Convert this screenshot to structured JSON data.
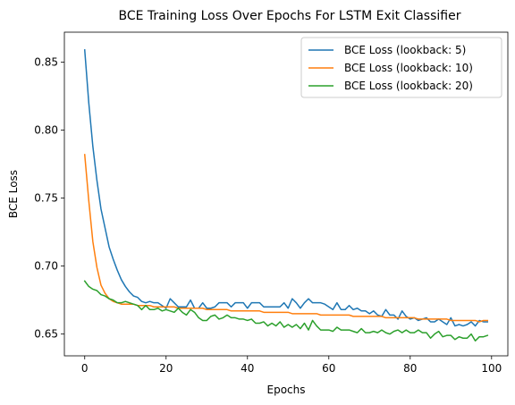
{
  "chart_data": {
    "type": "line",
    "title": "BCE Training Loss Over Epochs For LSTM Exit Classifier",
    "xlabel": "Epochs",
    "ylabel": "BCE Loss",
    "xlim": [
      -5,
      104
    ],
    "ylim": [
      0.634,
      0.872
    ],
    "xticks": [
      0,
      20,
      40,
      60,
      80,
      100
    ],
    "yticks": [
      0.65,
      0.7,
      0.75,
      0.8,
      0.85
    ],
    "xtick_labels": [
      "0",
      "20",
      "40",
      "60",
      "80",
      "100"
    ],
    "ytick_labels": [
      "0.65",
      "0.70",
      "0.75",
      "0.80",
      "0.85"
    ],
    "grid": false,
    "legend_position": "top-right",
    "series": [
      {
        "name": "BCE Loss (lookback: 5)",
        "color": "#1f77b4",
        "x": [
          0,
          1,
          2,
          3,
          4,
          5,
          6,
          7,
          8,
          9,
          10,
          11,
          12,
          13,
          14,
          15,
          16,
          17,
          18,
          19,
          20,
          21,
          22,
          23,
          24,
          25,
          26,
          27,
          28,
          29,
          30,
          31,
          32,
          33,
          34,
          35,
          36,
          37,
          38,
          39,
          40,
          41,
          42,
          43,
          44,
          45,
          46,
          47,
          48,
          49,
          50,
          51,
          52,
          53,
          54,
          55,
          56,
          57,
          58,
          59,
          60,
          61,
          62,
          63,
          64,
          65,
          66,
          67,
          68,
          69,
          70,
          71,
          72,
          73,
          74,
          75,
          76,
          77,
          78,
          79,
          80,
          81,
          82,
          83,
          84,
          85,
          86,
          87,
          88,
          89,
          90,
          91,
          92,
          93,
          94,
          95,
          96,
          97,
          98,
          99
        ],
        "y": [
          0.859,
          0.82,
          0.788,
          0.763,
          0.742,
          0.728,
          0.714,
          0.705,
          0.697,
          0.69,
          0.685,
          0.681,
          0.678,
          0.677,
          0.674,
          0.673,
          0.674,
          0.673,
          0.673,
          0.671,
          0.669,
          0.676,
          0.673,
          0.67,
          0.67,
          0.67,
          0.675,
          0.669,
          0.669,
          0.673,
          0.669,
          0.669,
          0.67,
          0.673,
          0.673,
          0.673,
          0.67,
          0.673,
          0.673,
          0.673,
          0.669,
          0.673,
          0.673,
          0.673,
          0.67,
          0.67,
          0.67,
          0.67,
          0.67,
          0.673,
          0.669,
          0.676,
          0.673,
          0.669,
          0.673,
          0.676,
          0.673,
          0.673,
          0.673,
          0.672,
          0.67,
          0.668,
          0.673,
          0.668,
          0.668,
          0.671,
          0.668,
          0.669,
          0.667,
          0.667,
          0.665,
          0.667,
          0.664,
          0.663,
          0.668,
          0.664,
          0.664,
          0.661,
          0.667,
          0.663,
          0.661,
          0.662,
          0.66,
          0.661,
          0.662,
          0.659,
          0.659,
          0.661,
          0.659,
          0.657,
          0.662,
          0.656,
          0.657,
          0.656,
          0.657,
          0.659,
          0.656,
          0.66,
          0.659,
          0.659
        ]
      },
      {
        "name": "BCE Loss (lookback: 10)",
        "color": "#ff7f0e",
        "x": [
          0,
          1,
          2,
          3,
          4,
          5,
          6,
          7,
          8,
          9,
          10,
          11,
          12,
          13,
          14,
          15,
          16,
          17,
          18,
          19,
          20,
          21,
          22,
          23,
          24,
          25,
          26,
          27,
          28,
          29,
          30,
          31,
          32,
          33,
          34,
          35,
          36,
          37,
          38,
          39,
          40,
          41,
          42,
          43,
          44,
          45,
          46,
          47,
          48,
          49,
          50,
          51,
          52,
          53,
          54,
          55,
          56,
          57,
          58,
          59,
          60,
          61,
          62,
          63,
          64,
          65,
          66,
          67,
          68,
          69,
          70,
          71,
          72,
          73,
          74,
          75,
          76,
          77,
          78,
          79,
          80,
          81,
          82,
          83,
          84,
          85,
          86,
          87,
          88,
          89,
          90,
          91,
          92,
          93,
          94,
          95,
          96,
          97,
          98,
          99
        ],
        "y": [
          0.782,
          0.748,
          0.718,
          0.699,
          0.686,
          0.68,
          0.676,
          0.674,
          0.673,
          0.672,
          0.672,
          0.672,
          0.672,
          0.671,
          0.671,
          0.671,
          0.671,
          0.67,
          0.67,
          0.67,
          0.67,
          0.67,
          0.67,
          0.669,
          0.669,
          0.669,
          0.669,
          0.669,
          0.669,
          0.669,
          0.668,
          0.668,
          0.668,
          0.668,
          0.668,
          0.668,
          0.667,
          0.667,
          0.667,
          0.667,
          0.667,
          0.667,
          0.667,
          0.667,
          0.666,
          0.666,
          0.666,
          0.666,
          0.666,
          0.666,
          0.666,
          0.665,
          0.665,
          0.665,
          0.665,
          0.665,
          0.665,
          0.665,
          0.664,
          0.664,
          0.664,
          0.664,
          0.664,
          0.664,
          0.664,
          0.664,
          0.663,
          0.663,
          0.663,
          0.663,
          0.663,
          0.663,
          0.663,
          0.663,
          0.662,
          0.662,
          0.662,
          0.662,
          0.662,
          0.662,
          0.662,
          0.662,
          0.661,
          0.661,
          0.661,
          0.661,
          0.661,
          0.661,
          0.661,
          0.661,
          0.66,
          0.66,
          0.66,
          0.66,
          0.66,
          0.66,
          0.66,
          0.659,
          0.66,
          0.66
        ]
      },
      {
        "name": "BCE Loss (lookback: 20)",
        "color": "#2ca02c",
        "x": [
          0,
          1,
          2,
          3,
          4,
          5,
          6,
          7,
          8,
          9,
          10,
          11,
          12,
          13,
          14,
          15,
          16,
          17,
          18,
          19,
          20,
          21,
          22,
          23,
          24,
          25,
          26,
          27,
          28,
          29,
          30,
          31,
          32,
          33,
          34,
          35,
          36,
          37,
          38,
          39,
          40,
          41,
          42,
          43,
          44,
          45,
          46,
          47,
          48,
          49,
          50,
          51,
          52,
          53,
          54,
          55,
          56,
          57,
          58,
          59,
          60,
          61,
          62,
          63,
          64,
          65,
          66,
          67,
          68,
          69,
          70,
          71,
          72,
          73,
          74,
          75,
          76,
          77,
          78,
          79,
          80,
          81,
          82,
          83,
          84,
          85,
          86,
          87,
          88,
          89,
          90,
          91,
          92,
          93,
          94,
          95,
          96,
          97,
          98,
          99
        ],
        "y": [
          0.689,
          0.685,
          0.683,
          0.682,
          0.679,
          0.678,
          0.676,
          0.675,
          0.673,
          0.673,
          0.674,
          0.673,
          0.672,
          0.671,
          0.668,
          0.671,
          0.668,
          0.668,
          0.669,
          0.667,
          0.668,
          0.667,
          0.666,
          0.669,
          0.666,
          0.664,
          0.668,
          0.666,
          0.662,
          0.66,
          0.66,
          0.663,
          0.664,
          0.661,
          0.662,
          0.664,
          0.662,
          0.662,
          0.661,
          0.661,
          0.66,
          0.661,
          0.658,
          0.658,
          0.659,
          0.656,
          0.658,
          0.656,
          0.659,
          0.655,
          0.657,
          0.655,
          0.657,
          0.654,
          0.658,
          0.653,
          0.66,
          0.656,
          0.653,
          0.653,
          0.653,
          0.652,
          0.655,
          0.653,
          0.653,
          0.653,
          0.652,
          0.651,
          0.654,
          0.651,
          0.651,
          0.652,
          0.651,
          0.653,
          0.651,
          0.65,
          0.652,
          0.653,
          0.651,
          0.653,
          0.651,
          0.651,
          0.653,
          0.651,
          0.651,
          0.647,
          0.65,
          0.652,
          0.648,
          0.649,
          0.649,
          0.646,
          0.648,
          0.647,
          0.647,
          0.65,
          0.645,
          0.648,
          0.648,
          0.649
        ]
      }
    ]
  }
}
